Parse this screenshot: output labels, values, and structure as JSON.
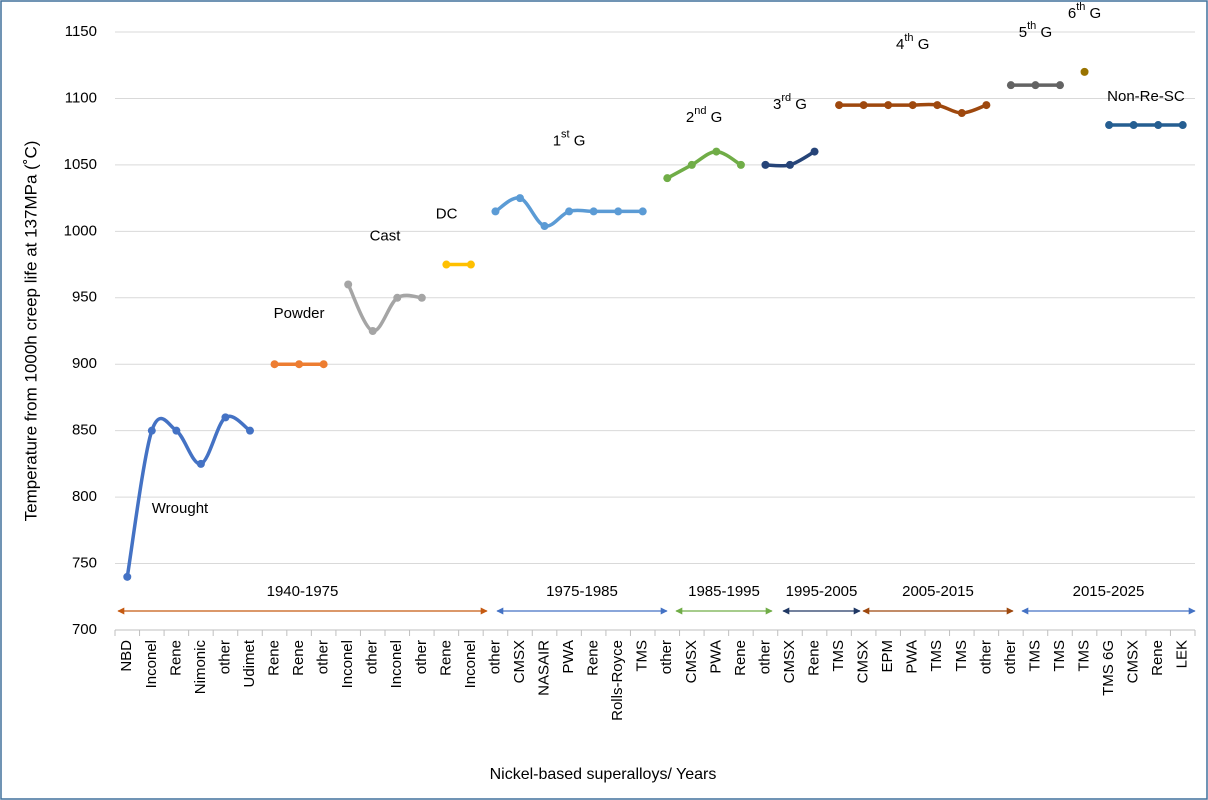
{
  "chart_data": {
    "type": "line",
    "y_label": "Temperature from 1000h creep life at 137MPa (˚C)",
    "x_label": "Nickel-based superalloys/ Years",
    "categories": [
      "NBD",
      "Inconel",
      "Rene",
      "Nimonic",
      "other",
      "Udimet",
      "Rene",
      "Rene",
      "other",
      "Inconel",
      "other",
      "Inconel",
      "other",
      "Rene",
      "Inconel",
      "other",
      "CMSX",
      "NASAIR",
      "PWA",
      "Rene",
      "Rolls-Royce",
      "TMS",
      "other",
      "CMSX",
      "PWA",
      "Rene",
      "other",
      "CMSX",
      "Rene",
      "TMS",
      "CMSX",
      "EPM",
      "PWA",
      "TMS",
      "TMS",
      "other",
      "other",
      "TMS",
      "TMS",
      "TMS",
      "TMS 6G",
      "CMSX",
      "Rene",
      "LEK"
    ],
    "ylim": [
      700,
      1150
    ],
    "yticks": [
      700,
      750,
      800,
      850,
      900,
      950,
      1000,
      1050,
      1100,
      1150
    ],
    "grid": true,
    "smooth": true,
    "series": [
      {
        "name": "Wrought",
        "color": "#4472c4",
        "values": [
          740,
          850,
          850,
          825,
          860,
          850,
          null,
          null,
          null,
          null,
          null,
          null,
          null,
          null,
          null,
          null,
          null,
          null,
          null,
          null,
          null,
          null,
          null,
          null,
          null,
          null,
          null,
          null,
          null,
          null,
          null,
          null,
          null,
          null,
          null,
          null,
          null,
          null,
          null,
          null,
          null,
          null,
          null,
          null
        ]
      },
      {
        "name": "Powder",
        "color": "#ed7d31",
        "values": [
          null,
          null,
          null,
          null,
          null,
          null,
          900,
          900,
          900,
          null,
          null,
          null,
          null,
          null,
          null,
          null,
          null,
          null,
          null,
          null,
          null,
          null,
          null,
          null,
          null,
          null,
          null,
          null,
          null,
          null,
          null,
          null,
          null,
          null,
          null,
          null,
          null,
          null,
          null,
          null,
          null,
          null,
          null,
          null
        ]
      },
      {
        "name": "Cast",
        "color": "#a5a5a5",
        "values": [
          null,
          null,
          null,
          null,
          null,
          null,
          null,
          null,
          null,
          960,
          925,
          950,
          950,
          null,
          null,
          null,
          null,
          null,
          null,
          null,
          null,
          null,
          null,
          null,
          null,
          null,
          null,
          null,
          null,
          null,
          null,
          null,
          null,
          null,
          null,
          null,
          null,
          null,
          null,
          null,
          null,
          null,
          null,
          null
        ]
      },
      {
        "name": "DC",
        "color": "#ffc000",
        "values": [
          null,
          null,
          null,
          null,
          null,
          null,
          null,
          null,
          null,
          null,
          null,
          null,
          null,
          975,
          975,
          null,
          null,
          null,
          null,
          null,
          null,
          null,
          null,
          null,
          null,
          null,
          null,
          null,
          null,
          null,
          null,
          null,
          null,
          null,
          null,
          null,
          null,
          null,
          null,
          null,
          null,
          null,
          null,
          null
        ]
      },
      {
        "name": "1st G",
        "color": "#5b9bd5",
        "values": [
          null,
          null,
          null,
          null,
          null,
          null,
          null,
          null,
          null,
          null,
          null,
          null,
          null,
          null,
          null,
          1015,
          1025,
          1004,
          1015,
          1015,
          1015,
          1015,
          null,
          null,
          null,
          null,
          null,
          null,
          null,
          null,
          null,
          null,
          null,
          null,
          null,
          null,
          null,
          null,
          null,
          null,
          null,
          null,
          null,
          null
        ]
      },
      {
        "name": "2nd G",
        "color": "#70ad47",
        "values": [
          null,
          null,
          null,
          null,
          null,
          null,
          null,
          null,
          null,
          null,
          null,
          null,
          null,
          null,
          null,
          null,
          null,
          null,
          null,
          null,
          null,
          null,
          1040,
          1050,
          1060,
          1050,
          null,
          null,
          null,
          null,
          null,
          null,
          null,
          null,
          null,
          null,
          null,
          null,
          null,
          null,
          null,
          null,
          null,
          null
        ]
      },
      {
        "name": "3rd G",
        "color": "#264478",
        "values": [
          null,
          null,
          null,
          null,
          null,
          null,
          null,
          null,
          null,
          null,
          null,
          null,
          null,
          null,
          null,
          null,
          null,
          null,
          null,
          null,
          null,
          null,
          null,
          null,
          null,
          null,
          1050,
          1050,
          1060,
          null,
          null,
          null,
          null,
          null,
          null,
          null,
          null,
          null,
          null,
          null,
          null,
          null,
          null,
          null
        ]
      },
      {
        "name": "4th G",
        "color": "#9e480e",
        "values": [
          null,
          null,
          null,
          null,
          null,
          null,
          null,
          null,
          null,
          null,
          null,
          null,
          null,
          null,
          null,
          null,
          null,
          null,
          null,
          null,
          null,
          null,
          null,
          null,
          null,
          null,
          null,
          null,
          null,
          1095,
          1095,
          1095,
          1095,
          1095,
          1089,
          1095,
          null,
          null,
          null,
          null,
          null,
          null,
          null,
          null
        ]
      },
      {
        "name": "5th G",
        "color": "#636363",
        "values": [
          null,
          null,
          null,
          null,
          null,
          null,
          null,
          null,
          null,
          null,
          null,
          null,
          null,
          null,
          null,
          null,
          null,
          null,
          null,
          null,
          null,
          null,
          null,
          null,
          null,
          null,
          null,
          null,
          null,
          null,
          null,
          null,
          null,
          null,
          null,
          null,
          1110,
          1110,
          1110,
          null,
          null,
          null,
          null,
          null
        ]
      },
      {
        "name": "6th G",
        "color": "#997300",
        "values": [
          null,
          null,
          null,
          null,
          null,
          null,
          null,
          null,
          null,
          null,
          null,
          null,
          null,
          null,
          null,
          null,
          null,
          null,
          null,
          null,
          null,
          null,
          null,
          null,
          null,
          null,
          null,
          null,
          null,
          null,
          null,
          null,
          null,
          null,
          null,
          null,
          null,
          null,
          null,
          1120,
          null,
          null,
          null,
          null
        ]
      },
      {
        "name": "Non-Re-SC",
        "color": "#255e91",
        "values": [
          null,
          null,
          null,
          null,
          null,
          null,
          null,
          null,
          null,
          null,
          null,
          null,
          null,
          null,
          null,
          null,
          null,
          null,
          null,
          null,
          null,
          null,
          null,
          null,
          null,
          null,
          null,
          null,
          null,
          null,
          null,
          null,
          null,
          null,
          null,
          null,
          null,
          null,
          null,
          null,
          1080,
          1080,
          1080,
          1080
        ]
      }
    ],
    "periods": [
      {
        "label": "1940-1975",
        "color": "#c55a11"
      },
      {
        "label": "1975-1985",
        "color": "#4472c4"
      },
      {
        "label": "1985-1995",
        "color": "#70ad47"
      },
      {
        "label": "1995-2005",
        "color": "#203864"
      },
      {
        "label": "2005-2015",
        "color": "#9e480e"
      },
      {
        "label": "2015-2025",
        "color": "#4472c4"
      }
    ]
  }
}
